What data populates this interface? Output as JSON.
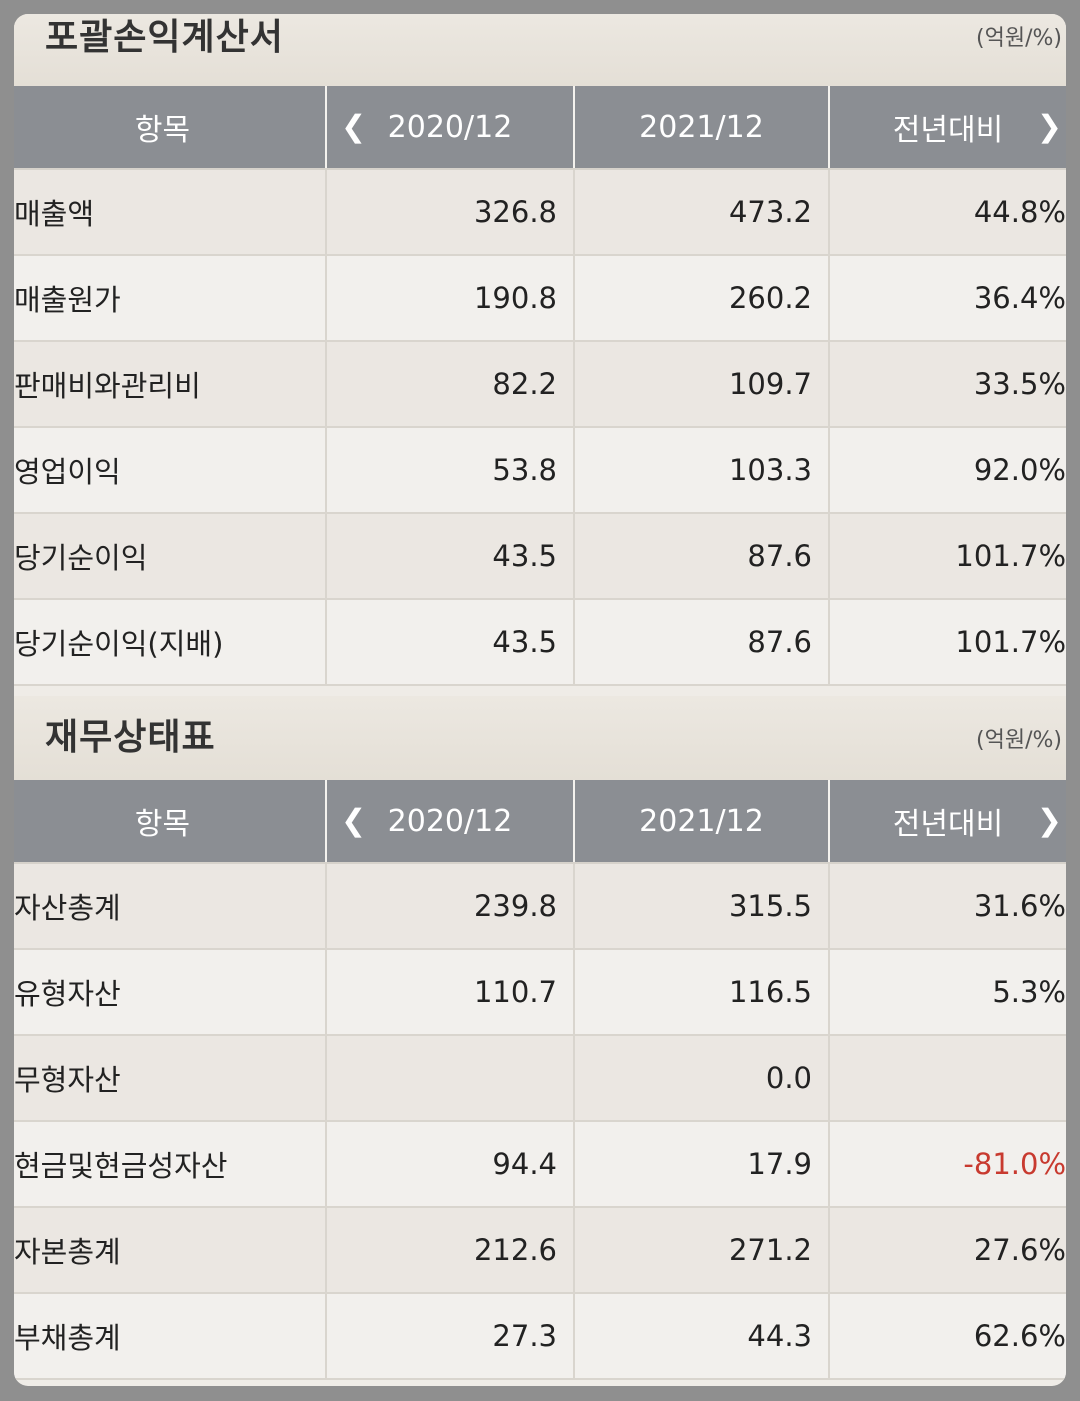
{
  "income_statement": {
    "title": "포괄손익계산서",
    "unit": "(억원/%)",
    "headers": {
      "item": "항목",
      "y1": "2020/12",
      "y2": "2021/12",
      "yoy": "전년대비"
    },
    "rows": [
      {
        "label": "매출액",
        "y1": "326.8",
        "y2": "473.2",
        "yoy": "44.8%"
      },
      {
        "label": "매출원가",
        "y1": "190.8",
        "y2": "260.2",
        "yoy": "36.4%"
      },
      {
        "label": "판매비와관리비",
        "y1": "82.2",
        "y2": "109.7",
        "yoy": "33.5%"
      },
      {
        "label": "영업이익",
        "y1": "53.8",
        "y2": "103.3",
        "yoy": "92.0%"
      },
      {
        "label": "당기순이익",
        "y1": "43.5",
        "y2": "87.6",
        "yoy": "101.7%"
      },
      {
        "label": "당기순이익(지배)",
        "y1": "43.5",
        "y2": "87.6",
        "yoy": "101.7%"
      }
    ]
  },
  "balance_sheet": {
    "title": "재무상태표",
    "unit": "(억원/%)",
    "headers": {
      "item": "항목",
      "y1": "2020/12",
      "y2": "2021/12",
      "yoy": "전년대비"
    },
    "rows": [
      {
        "label": "자산총계",
        "y1": "239.8",
        "y2": "315.5",
        "yoy": "31.6%"
      },
      {
        "label": "유형자산",
        "y1": "110.7",
        "y2": "116.5",
        "yoy": "5.3%"
      },
      {
        "label": "무형자산",
        "y1": "",
        "y2": "0.0",
        "yoy": ""
      },
      {
        "label": "현금및현금성자산",
        "y1": "94.4",
        "y2": "17.9",
        "yoy": "-81.0%"
      },
      {
        "label": "자본총계",
        "y1": "212.6",
        "y2": "271.2",
        "yoy": "27.6%"
      },
      {
        "label": "부채총계",
        "y1": "27.3",
        "y2": "44.3",
        "yoy": "62.6%"
      }
    ]
  },
  "icons": {
    "prev": "chevron-left-icon",
    "next": "chevron-right-icon"
  },
  "colors": {
    "header_bg": "#8b8e93",
    "negative": "#c83a2f"
  }
}
